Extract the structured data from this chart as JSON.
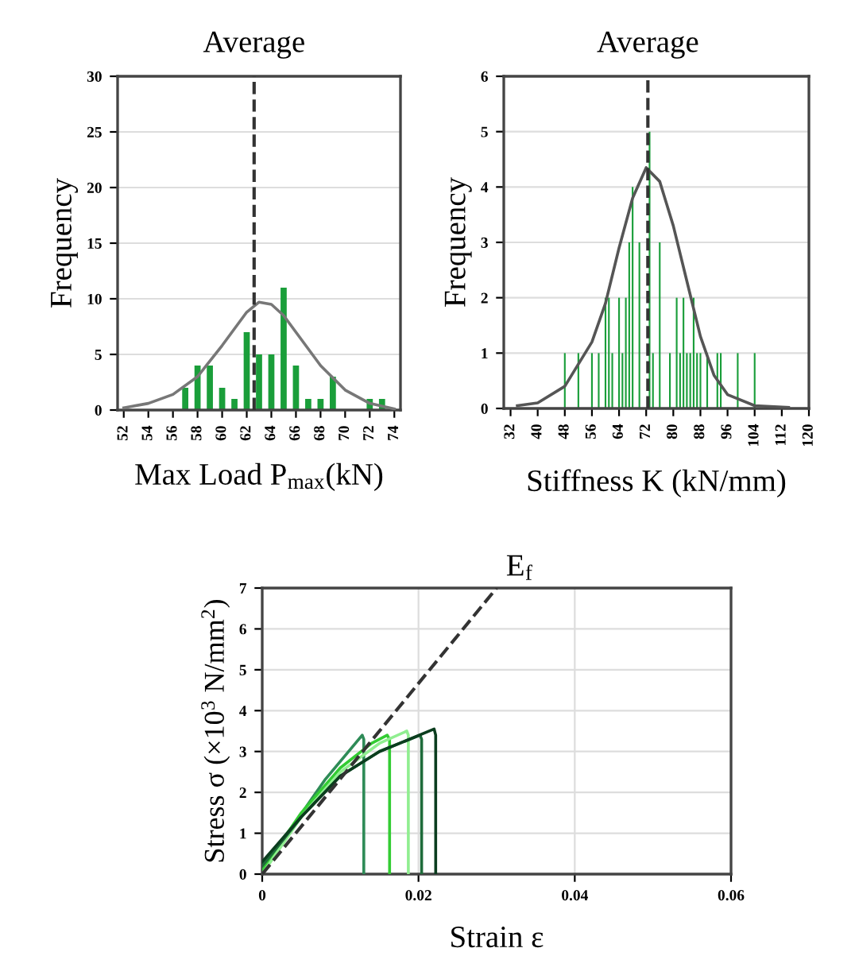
{
  "chart_data": [
    {
      "type": "bar",
      "xlabel": "Max Load P$_{max}$(kN)",
      "ylabel": "Frequency",
      "xlim": [
        51.5,
        74.5
      ],
      "xticks": [
        52,
        54,
        56,
        58,
        60,
        62,
        64,
        66,
        68,
        70,
        72,
        74
      ],
      "ylim": [
        0,
        30
      ],
      "yticks": [
        0,
        5,
        10,
        15,
        20,
        25,
        30
      ],
      "grid": "y",
      "series": [
        {
          "type": "bar",
          "color": "#1a9e3a",
          "x": [
            57,
            58,
            59,
            60,
            61,
            62,
            63,
            64,
            65,
            66,
            67,
            68,
            69,
            72,
            73
          ],
          "values": [
            2,
            4,
            4,
            2,
            1,
            7,
            5,
            5,
            11,
            4,
            1,
            1,
            3,
            1,
            1
          ]
        },
        {
          "type": "line",
          "color": "#777777",
          "x": [
            52,
            54,
            56,
            58,
            60,
            61,
            62,
            63,
            64,
            65,
            66,
            68,
            70,
            72,
            74
          ],
          "values": [
            0.2,
            0.6,
            1.4,
            3.0,
            5.8,
            7.3,
            8.8,
            9.7,
            9.5,
            8.5,
            7.0,
            4.0,
            1.8,
            0.6,
            0.1
          ]
        }
      ],
      "ref_lines": [
        {
          "axis": "x",
          "value": 62.6,
          "label": "Average",
          "color": "#333333",
          "line_style": "dashed"
        }
      ]
    },
    {
      "type": "bar",
      "xlabel": "Stiffness K (kN/mm)",
      "ylabel": "Frequency",
      "xlim": [
        30,
        120
      ],
      "xticks": [
        32,
        40,
        48,
        56,
        64,
        72,
        80,
        88,
        96,
        104,
        112,
        120
      ],
      "ylim": [
        0,
        6
      ],
      "yticks": [
        0,
        1,
        2,
        3,
        4,
        5,
        6
      ],
      "grid": "y",
      "series": [
        {
          "type": "bar",
          "color": "#1a9e3a",
          "x": [
            48,
            52,
            56,
            58,
            60,
            61,
            62,
            64,
            65,
            66,
            67,
            68,
            70,
            73,
            74,
            76,
            79,
            81,
            82,
            83,
            84,
            85,
            86,
            87,
            88,
            90,
            93,
            94,
            99,
            104
          ],
          "values": [
            1,
            1,
            1,
            1,
            2,
            2,
            1,
            2,
            1,
            2,
            3,
            4,
            3,
            5,
            1,
            3,
            1,
            2,
            1,
            2,
            1,
            1,
            2,
            1,
            1,
            1,
            1,
            1,
            1,
            1
          ]
        },
        {
          "type": "line",
          "color": "#555555",
          "x": [
            34,
            40,
            48,
            56,
            60,
            64,
            68,
            72,
            76,
            80,
            84,
            88,
            92,
            96,
            104,
            114
          ],
          "values": [
            0.05,
            0.1,
            0.4,
            1.2,
            1.9,
            2.9,
            3.8,
            4.35,
            4.1,
            3.3,
            2.3,
            1.3,
            0.6,
            0.25,
            0.05,
            0.02
          ]
        }
      ],
      "ref_lines": [
        {
          "axis": "x",
          "value": 72.5,
          "label": "Average",
          "color": "#333333",
          "line_style": "dashed"
        }
      ]
    },
    {
      "type": "line",
      "xlabel": "Strain ε",
      "ylabel": "Stress σ (×10$^{3}$ N/mm$^{2}$)",
      "xlim": [
        0,
        0.06
      ],
      "xticks": [
        0,
        0.02,
        0.04,
        0.06
      ],
      "ylim": [
        0,
        7
      ],
      "yticks": [
        0,
        1,
        2,
        3,
        4,
        5,
        6,
        7
      ],
      "grid": true,
      "line_style": "solid",
      "series": [
        {
          "color": "#2e8b57",
          "x": [
            0,
            0.004,
            0.008,
            0.0128,
            0.013,
            0.013
          ],
          "values": [
            0.2,
            1.2,
            2.3,
            3.4,
            3.3,
            0
          ]
        },
        {
          "color": "#33cc33",
          "x": [
            0,
            0.005,
            0.01,
            0.014,
            0.016,
            0.0163,
            0.0163
          ],
          "values": [
            0.1,
            1.5,
            2.6,
            3.2,
            3.4,
            3.3,
            0
          ]
        },
        {
          "color": "#90ee90",
          "x": [
            0,
            0.005,
            0.01,
            0.015,
            0.0185,
            0.0187,
            0.0187
          ],
          "values": [
            0,
            1.4,
            2.5,
            3.2,
            3.5,
            3.4,
            0
          ]
        },
        {
          "color": "#1e6b3a",
          "x": [
            0,
            0.005,
            0.01,
            0.015,
            0.0202,
            0.0204,
            0.0204
          ],
          "values": [
            0.2,
            1.4,
            2.4,
            3.0,
            3.4,
            3.3,
            0
          ]
        },
        {
          "color": "#0b3d1e",
          "x": [
            0,
            0.005,
            0.01,
            0.015,
            0.022,
            0.0222,
            0.0222
          ],
          "values": [
            0.3,
            1.4,
            2.4,
            3.0,
            3.55,
            3.4,
            0
          ]
        },
        {
          "color": "#333333",
          "line_style": "dashed",
          "x": [
            0,
            0.03
          ],
          "values": [
            0,
            7
          ]
        }
      ],
      "annotations": [
        "E$_{f}$"
      ]
    }
  ]
}
